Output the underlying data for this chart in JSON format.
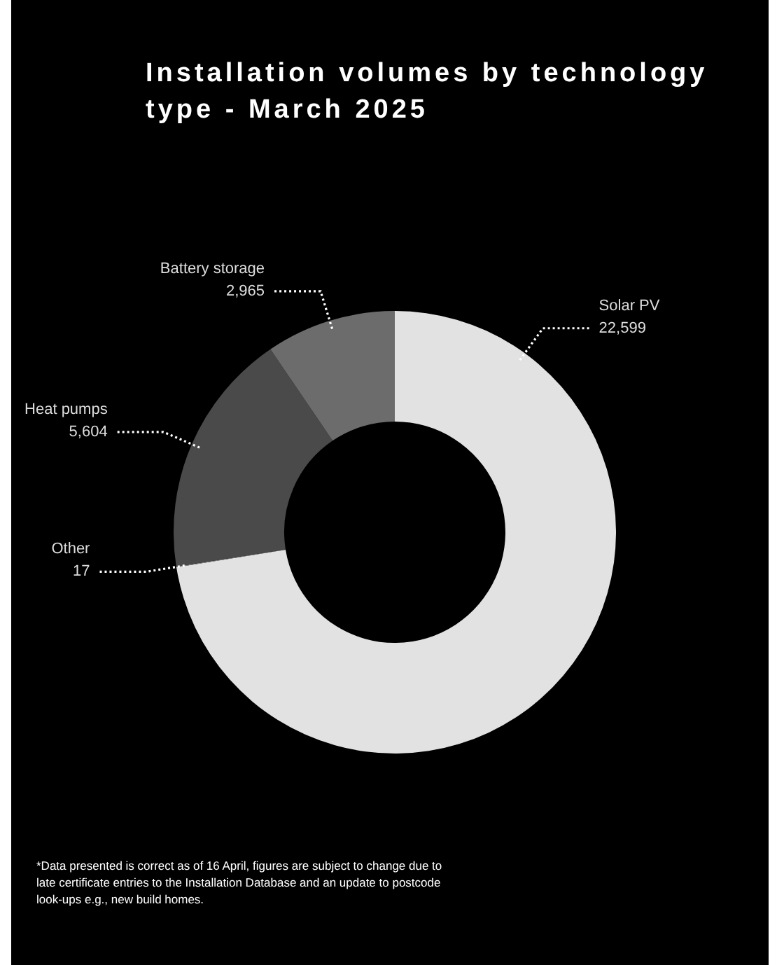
{
  "chart_data": {
    "type": "donut",
    "title": "Installation volumes by technology type - March 2025",
    "categories": [
      "Solar PV",
      "Other",
      "Heat pumps",
      "Battery storage"
    ],
    "values": [
      22599,
      17,
      5604,
      2965
    ],
    "value_labels": [
      "22,599",
      "17",
      "5,604",
      "2,965"
    ],
    "colors": [
      "#e2e2e2",
      "#9a9a9a",
      "#4a4a4a",
      "#6c6c6c"
    ],
    "legend": false,
    "annotations": [
      "*Data presented is correct as of 16 April, figures are subject to change due to late certificate entries to the Installation Database and an update to postcode look-ups e.g., new build homes."
    ]
  }
}
